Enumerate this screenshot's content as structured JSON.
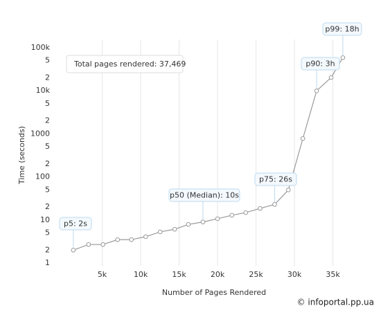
{
  "chart_data": {
    "type": "line",
    "x_label": "Number of Pages Rendered",
    "y_label": "Time (seconds)",
    "note": "Total pages rendered: 37,469",
    "watermark": "© infoportal.pp.ua",
    "annotations": [
      "p5: 2s",
      "p50 (Median): 10s",
      "p75: 26s",
      "p90: 3h",
      "p99: 18h"
    ],
    "x": [
      1250,
      3230,
      5100,
      7000,
      8800,
      10660,
      12540,
      14430,
      16200,
      18100,
      20000,
      21860,
      23660,
      25540,
      27420,
      29210,
      31090,
      32880,
      34770,
      36290
    ],
    "values": [
      2,
      2.7,
      2.7,
      3.5,
      3.5,
      4.1,
      5.3,
      6.1,
      7.9,
      9,
      10.7,
      12.9,
      14.9,
      18.6,
      23,
      50,
      780,
      10000,
      20400,
      59000
    ],
    "color": "#999999",
    "yscale": "log",
    "xlim": [
      0,
      39000
    ],
    "xticks": [
      {
        "value": 5000,
        "label": "5k"
      },
      {
        "value": 10000,
        "label": "10k"
      },
      {
        "value": 15000,
        "label": "15k"
      },
      {
        "value": 20000,
        "label": "20k"
      },
      {
        "value": 25000,
        "label": "25k"
      },
      {
        "value": 30000,
        "label": "30k"
      },
      {
        "value": 35000,
        "label": "35k"
      }
    ],
    "ylim": [
      1,
      100000
    ],
    "yticks": [
      1,
      2,
      5,
      10,
      {
        "value": 20,
        "label": "2"
      },
      {
        "value": 50,
        "label": "5"
      },
      100,
      {
        "value": 200,
        "label": "2"
      },
      {
        "value": 500,
        "label": "5"
      },
      1000,
      {
        "value": 2000,
        "label": "2"
      },
      {
        "value": 5000,
        "label": "5"
      },
      {
        "value": 10000,
        "label": "10k"
      },
      {
        "value": 20000,
        "label": "2"
      },
      {
        "value": 50000,
        "label": "5"
      },
      {
        "value": 100000,
        "label": "100k"
      }
    ],
    "xgrid": true
  }
}
